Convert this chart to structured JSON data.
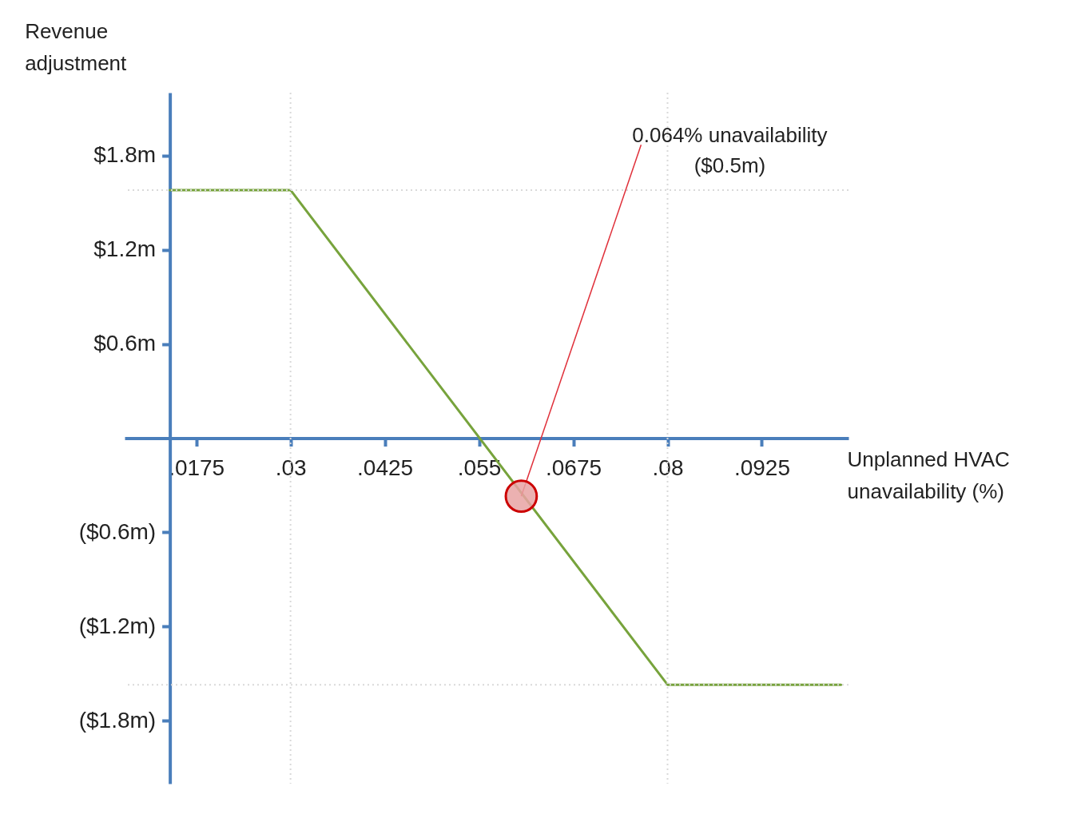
{
  "chart_data": {
    "type": "line",
    "xlabel": "Unplanned HVAC unavailability (%)",
    "ylabel": "Revenue adjustment",
    "x": [
      0.014,
      0.03,
      0.08,
      0.103
    ],
    "values": [
      1.58,
      1.58,
      -1.57,
      -1.57
    ],
    "color": "#77a33c",
    "xlim": [
      0.008,
      0.104
    ],
    "xticks": [
      {
        "value": 0.0175,
        "label": ".0175"
      },
      {
        "value": 0.03,
        "label": ".03"
      },
      {
        "value": 0.0425,
        "label": ".0425"
      },
      {
        "value": 0.055,
        "label": ".055"
      },
      {
        "value": 0.0675,
        "label": ".0675"
      },
      {
        "value": 0.08,
        "label": ".08"
      },
      {
        "value": 0.0925,
        "label": ".0925"
      }
    ],
    "ylim": [
      -2.2,
      2.2
    ],
    "yticks": [
      {
        "value": -1.8,
        "label": "($1.8m)"
      },
      {
        "value": -1.2,
        "label": "($1.2m)"
      },
      {
        "value": -0.6,
        "label": "($0.6m)"
      },
      {
        "value": 0.6,
        "label": "$0.6m"
      },
      {
        "value": 1.2,
        "label": "$1.2m"
      },
      {
        "value": 1.8,
        "label": "$1.8m"
      }
    ],
    "ref_lines": [
      {
        "axis": "y",
        "value": 1.58,
        "color": "#d9d9d9",
        "line_style": "dotted"
      },
      {
        "axis": "y",
        "value": -1.57,
        "color": "#d9d9d9",
        "line_style": "dotted"
      },
      {
        "axis": "x",
        "value": 0.03,
        "color": "#d9d9d9",
        "line_style": "dotted"
      },
      {
        "axis": "x",
        "value": 0.08,
        "color": "#d9d9d9",
        "line_style": "dotted"
      }
    ],
    "annotations": [
      {
        "text": "0.064% unavailability ($0.5m)",
        "x": 0.0606,
        "y": -0.37
      }
    ],
    "grid": false,
    "marker": "none",
    "line_style": "solid"
  }
}
